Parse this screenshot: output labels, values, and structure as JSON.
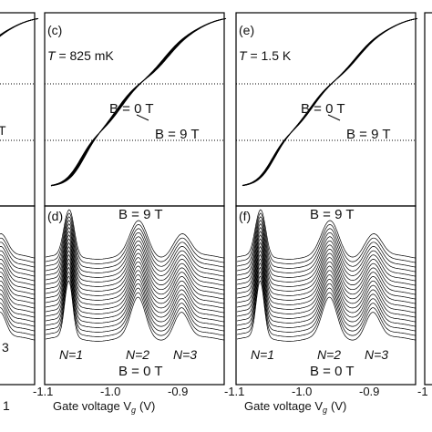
{
  "chart_data": [
    {
      "panel": "(c)",
      "type": "line",
      "annotations": [
        "T = 825 mK",
        "B = 0 T",
        "B = 9 T"
      ],
      "x_range": [
        -1.1,
        -0.8
      ],
      "field_range_T": [
        0,
        9
      ],
      "plateaus": "conductance steps between horizontal dotted reference levels"
    },
    {
      "panel": "(d)",
      "type": "line",
      "annotations": [
        "B = 9 T",
        "B = 0 T",
        "N=1",
        "N=2",
        "N=3"
      ],
      "x_ticks": [
        "-1.1",
        "-1.0",
        "-0.9"
      ],
      "xlabel": "Gate voltage Vg (V)",
      "peak_positions_V": [
        -1.065,
        -0.96,
        -0.895
      ],
      "num_traces": 19
    },
    {
      "panel": "(e)",
      "type": "line",
      "annotations": [
        "T = 1.5 K",
        "B = 0 T",
        "B = 9 T"
      ],
      "x_range": [
        -1.1,
        -0.8
      ]
    },
    {
      "panel": "(f)",
      "type": "line",
      "annotations": [
        "B = 9 T",
        "B = 0 T",
        "N=1",
        "N=2",
        "N=3"
      ],
      "x_ticks": [
        "-1.1",
        "-1.0",
        "-0.9"
      ],
      "xlabel": "Gate voltage Vg (V)",
      "peak_positions_V": [
        -1.065,
        -0.96,
        -0.895
      ],
      "num_traces": 19
    }
  ],
  "text": {
    "c_label": "(c)",
    "c_T_sym": "T",
    "c_T_val": " = 825 mK",
    "c_B0": "B = 0 T",
    "c_B9": "B = 9 T",
    "d_label": "(d)",
    "d_B9": "B = 9 T",
    "d_B0": "B = 0 T",
    "e_label": "(e)",
    "e_T_sym": "T",
    "e_T_val": " = 1.5 K",
    "e_B0": "B = 0 T",
    "e_B9": "B = 9 T",
    "f_label": "(f)",
    "f_B9": "B = 9 T",
    "f_B0": "B = 0 T",
    "n1": "N=1",
    "n2": "N=2",
    "n3": "N=3",
    "left_n3": "3",
    "left_T": "T",
    "xlabel_main": "Gate voltage V",
    "xlabel_sub": "g",
    "xlabel_unit": "(V)",
    "tick_m11": "-1.1",
    "tick_m10": "-1.0",
    "tick_m09": "-0.9",
    "tick_m1": "-1",
    "left_tick_frag": "1"
  }
}
